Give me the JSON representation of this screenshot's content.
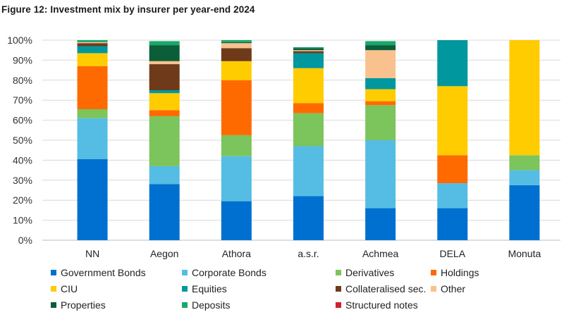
{
  "title": "Figure 12: Investment mix by insurer per year-end 2024",
  "chart_data": {
    "type": "bar",
    "stacked": true,
    "title": "Figure 12: Investment mix by insurer per year-end 2024",
    "xlabel": "",
    "ylabel": "",
    "ylim": [
      0,
      100
    ],
    "yticks": [
      "0%",
      "10%",
      "20%",
      "30%",
      "40%",
      "50%",
      "60%",
      "70%",
      "80%",
      "90%",
      "100%"
    ],
    "grid": true,
    "legend_position": "bottom",
    "categories": [
      "NN",
      "Aegon",
      "Athora",
      "a.s.r.",
      "Achmea",
      "DELA",
      "Monuta"
    ],
    "series": [
      {
        "name": "Government Bonds",
        "color": "#0070d0",
        "values": [
          40.5,
          28,
          19.5,
          22,
          16,
          16,
          27.5
        ]
      },
      {
        "name": "Corporate Bonds",
        "color": "#55bde3",
        "values": [
          20.5,
          9,
          22.5,
          25,
          34,
          12.5,
          7.5
        ]
      },
      {
        "name": "Derivatives",
        "color": "#7cc45c",
        "values": [
          4.5,
          25,
          10.5,
          16.5,
          17.5,
          0,
          7.5
        ]
      },
      {
        "name": "Holdings",
        "color": "#ff6a00",
        "values": [
          21.5,
          3,
          27.5,
          5,
          2,
          14,
          0
        ]
      },
      {
        "name": "CIU",
        "color": "#ffcc00",
        "values": [
          6.5,
          8.5,
          9.5,
          17.5,
          6,
          34.5,
          57.5
        ]
      },
      {
        "name": "Equities",
        "color": "#00979e",
        "values": [
          3.5,
          1.5,
          0,
          7.5,
          5.5,
          23,
          0
        ]
      },
      {
        "name": "Collateralised sec.",
        "color": "#6e3a1a",
        "values": [
          1.5,
          13,
          6.5,
          1,
          0,
          0,
          0
        ]
      },
      {
        "name": "Other",
        "color": "#f9c18e",
        "values": [
          0.5,
          1.5,
          2.5,
          0.5,
          14,
          0,
          0
        ]
      },
      {
        "name": "Properties",
        "color": "#0b5e37",
        "values": [
          0,
          8,
          0.5,
          1,
          2.5,
          0,
          0
        ]
      },
      {
        "name": "Deposits",
        "color": "#17a86c",
        "values": [
          1,
          2,
          1,
          0.5,
          2,
          0,
          0
        ]
      },
      {
        "name": "Structured notes",
        "color": "#d0202a",
        "values": [
          0,
          0,
          0,
          0,
          0,
          0,
          0
        ]
      }
    ]
  }
}
